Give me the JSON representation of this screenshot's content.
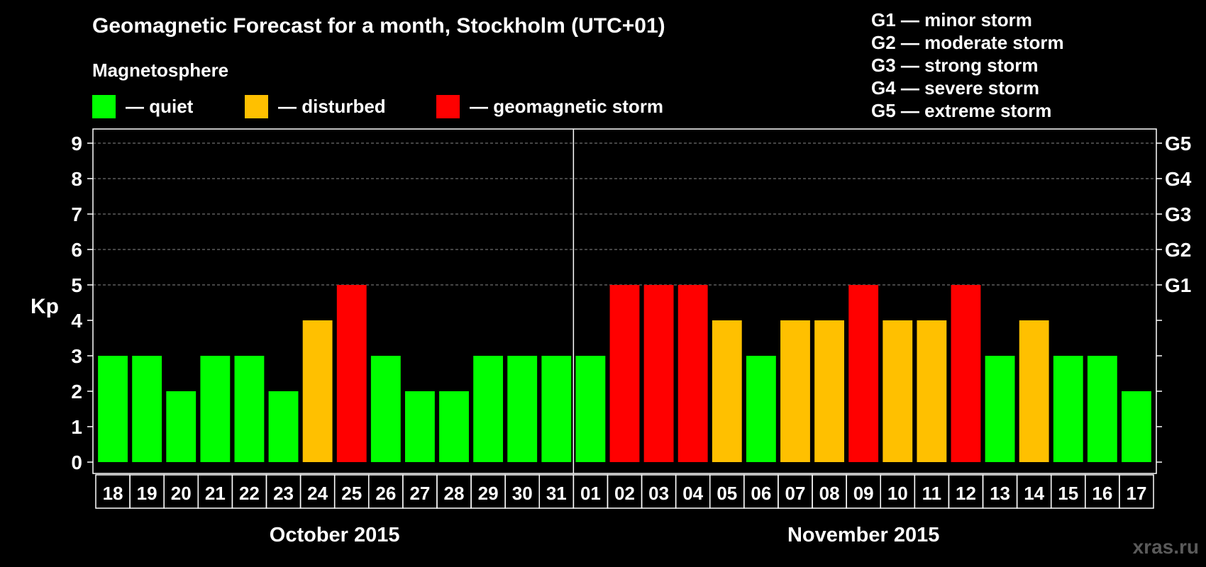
{
  "title": "Geomagnetic Forecast for a month, Stockholm (UTC+01)",
  "subtitle": "Magnetosphere",
  "legend": [
    {
      "label": "— quiet",
      "color": "#00ff00"
    },
    {
      "label": "— disturbed",
      "color": "#ffc000"
    },
    {
      "label": "— geomagnetic storm",
      "color": "#ff0000"
    }
  ],
  "storm_levels": [
    "G1 — minor storm",
    "G2 — moderate storm",
    "G3 — strong storm",
    "G4 — severe storm",
    "G5 — extreme storm"
  ],
  "watermark": "xras.ru",
  "chart_data": {
    "type": "bar",
    "title": "Geomagnetic Forecast for a month, Stockholm (UTC+01)",
    "ylabel": "Kp",
    "ylim": [
      0,
      9
    ],
    "yticks": [
      0,
      1,
      2,
      3,
      4,
      5,
      6,
      7,
      8,
      9
    ],
    "right_axis_labels": [
      {
        "kp": 5,
        "label": "G1"
      },
      {
        "kp": 6,
        "label": "G2"
      },
      {
        "kp": 7,
        "label": "G3"
      },
      {
        "kp": 8,
        "label": "G4"
      },
      {
        "kp": 9,
        "label": "G5"
      }
    ],
    "categories": [
      "18",
      "19",
      "20",
      "21",
      "22",
      "23",
      "24",
      "25",
      "26",
      "27",
      "28",
      "29",
      "30",
      "31",
      "01",
      "02",
      "03",
      "04",
      "05",
      "06",
      "07",
      "08",
      "09",
      "10",
      "11",
      "12",
      "13",
      "14",
      "15",
      "16",
      "17"
    ],
    "values": [
      3,
      3,
      2,
      3,
      3,
      2,
      4,
      5,
      3,
      2,
      2,
      3,
      3,
      3,
      3,
      5,
      5,
      5,
      4,
      3,
      4,
      4,
      5,
      4,
      4,
      5,
      3,
      4,
      3,
      3,
      2
    ],
    "colors": {
      "quiet": "#00ff00",
      "disturbed": "#ffc000",
      "storm": "#ff0000"
    },
    "months": [
      {
        "label": "October 2015",
        "days": 14
      },
      {
        "label": "November 2015",
        "days": 17
      }
    ],
    "grid": true
  }
}
